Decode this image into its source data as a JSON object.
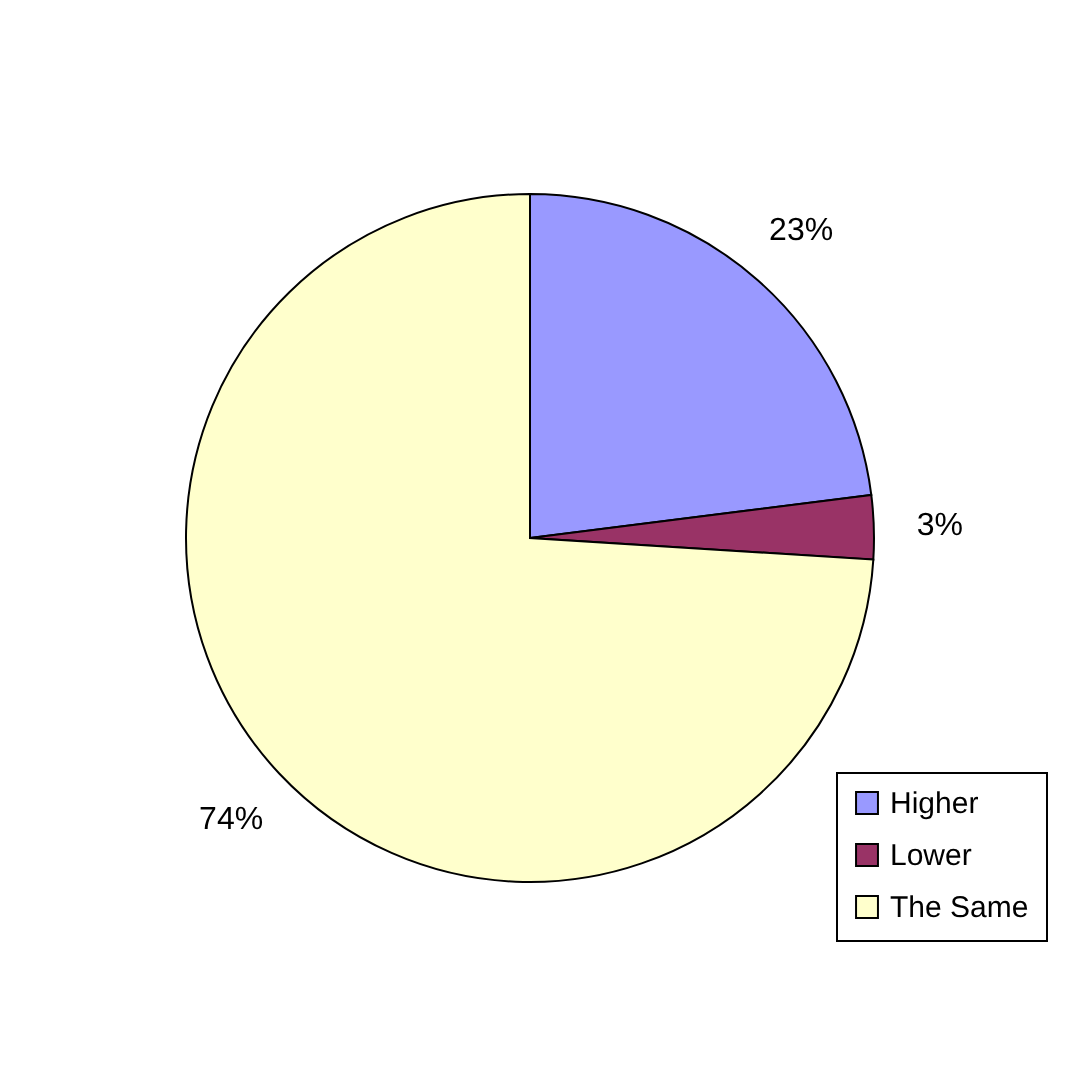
{
  "chart_data": {
    "type": "pie",
    "categories": [
      "Higher",
      "Lower",
      "The Same"
    ],
    "values": [
      23,
      3,
      74
    ],
    "value_labels": [
      "23%",
      "3%",
      "74%"
    ],
    "colors": [
      "#9999ff",
      "#993366",
      "#ffffcc"
    ],
    "legend": "bottom right"
  }
}
